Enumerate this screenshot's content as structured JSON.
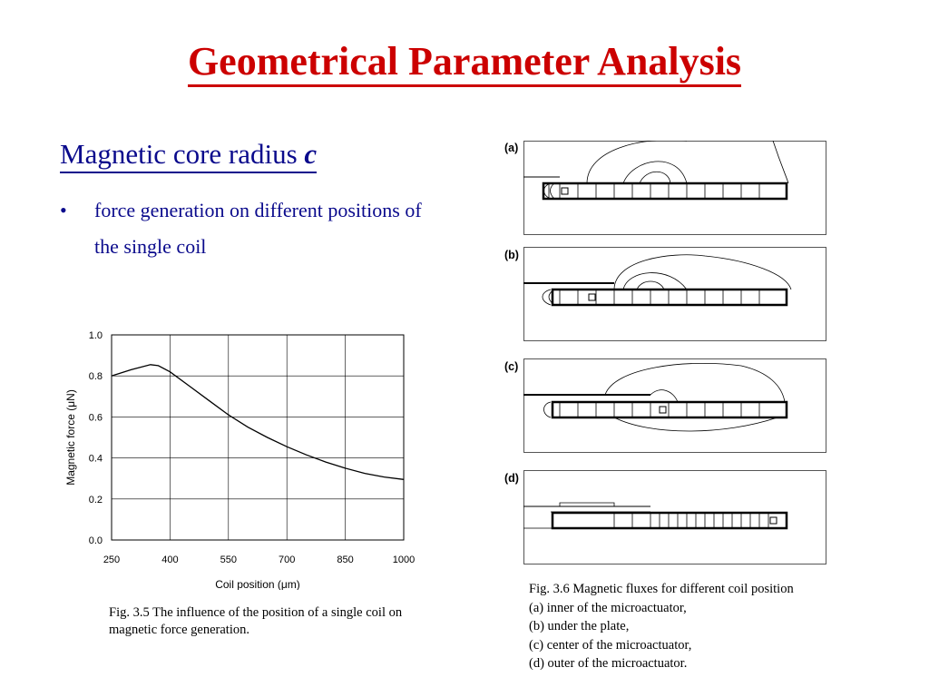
{
  "slide": {
    "title": "Geometrical Parameter Analysis",
    "heading_main": "Magnetic core radius ",
    "heading_var": "c",
    "bullet_symbol": "•",
    "bullet_text": "force generation on different positions of the single coil"
  },
  "chart_data": {
    "type": "line",
    "title": "",
    "xlabel": "Coil position (μm)",
    "ylabel": "Magnetic force (μN)",
    "xlim": [
      250,
      1000
    ],
    "ylim": [
      0.0,
      1.0
    ],
    "x_ticks": [
      "250",
      "400",
      "550",
      "700",
      "850",
      "1000"
    ],
    "y_ticks": [
      "0.0",
      "0.2",
      "0.4",
      "0.6",
      "0.8",
      "1.0"
    ],
    "grid": true,
    "series": [
      {
        "x": [
          250,
          300,
          350,
          370,
          400,
          450,
          500,
          550,
          600,
          650,
          700,
          750,
          800,
          850,
          900,
          950,
          1000
        ],
        "y": [
          0.8,
          0.83,
          0.855,
          0.85,
          0.82,
          0.75,
          0.68,
          0.61,
          0.55,
          0.5,
          0.455,
          0.415,
          0.38,
          0.35,
          0.325,
          0.307,
          0.295
        ]
      }
    ]
  },
  "caption_left": "Fig. 3.5 The influence of the position of a single coil on magnetic force generation.",
  "panels": [
    {
      "label": "(a)"
    },
    {
      "label": "(b)"
    },
    {
      "label": "(c)"
    },
    {
      "label": "(d)"
    }
  ],
  "caption_right": [
    "Fig. 3.6 Magnetic fluxes for different coil position",
    "(a) inner of the microactuator,",
    "(b) under the plate,",
    "(c) center of the microactuator,",
    "(d) outer of the microactuator."
  ],
  "colors": {
    "title": "#cc0000",
    "text": "#0a0a8c"
  }
}
